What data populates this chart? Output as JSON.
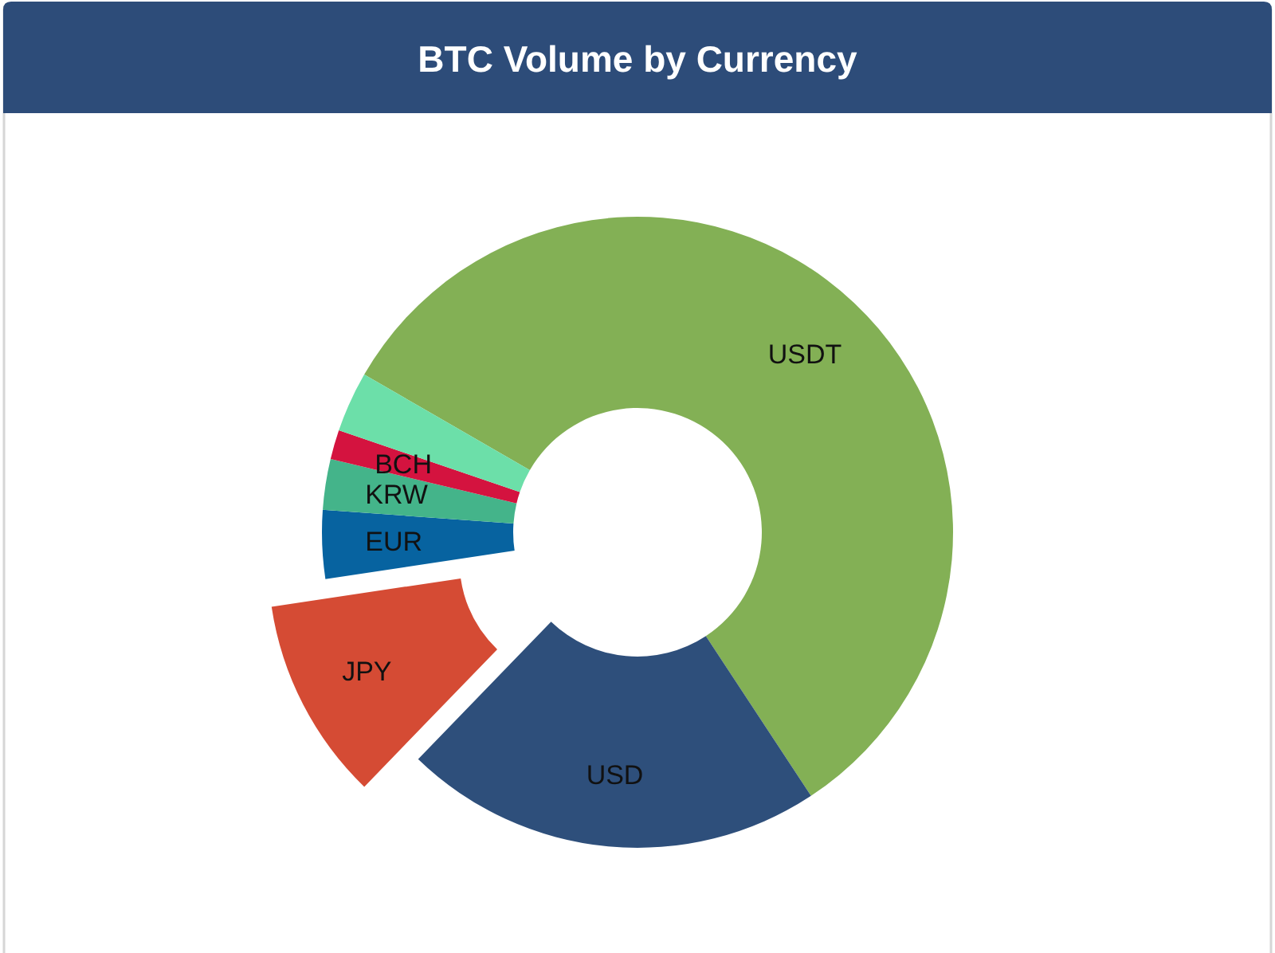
{
  "chart_data": {
    "type": "donut",
    "title": "BTC Volume by Currency",
    "categories": [
      "USDT",
      "USD",
      "JPY",
      "EUR",
      "KRW",
      "BCH",
      null
    ],
    "values": [
      57.4,
      21.5,
      10.4,
      3.5,
      2.6,
      1.5,
      3.1
    ],
    "colors": [
      "#83b055",
      "#2e4f7b",
      "#d54b34",
      "#0763a0",
      "#44b48a",
      "#d4133f",
      "#6cdfa9"
    ]
  }
}
